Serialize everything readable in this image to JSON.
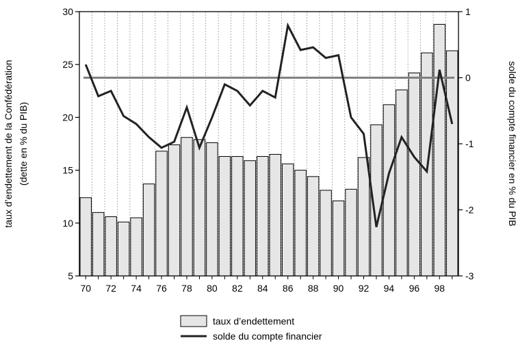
{
  "chart_data": {
    "type": "bar+line",
    "x_tick_labels": [
      "70",
      "72",
      "74",
      "76",
      "78",
      "80",
      "82",
      "84",
      "86",
      "88",
      "90",
      "92",
      "94",
      "96",
      "98"
    ],
    "left_axis": {
      "label_line1": "taux d’endettement de la Confédération",
      "label_line2": "(dette en % du PIB)",
      "range": [
        5,
        30
      ],
      "ticks": [
        5,
        10,
        15,
        20,
        25,
        30
      ],
      "tick_labels": [
        "5",
        "10",
        "15",
        "20",
        "25",
        "30"
      ]
    },
    "right_axis": {
      "label": "solde du compte financier en % du PIB",
      "range": [
        -3,
        1
      ],
      "ticks": [
        -3,
        -2,
        -1,
        0,
        1
      ],
      "tick_labels": [
        "-3",
        "-2",
        "-1",
        "0",
        "1"
      ]
    },
    "years": [
      1970,
      1971,
      1972,
      1973,
      1974,
      1975,
      1976,
      1977,
      1978,
      1979,
      1980,
      1981,
      1982,
      1983,
      1984,
      1985,
      1986,
      1987,
      1988,
      1989,
      1990,
      1991,
      1992,
      1993,
      1994,
      1995,
      1996,
      1997,
      1998,
      1999
    ],
    "series": [
      {
        "name": "taux d’endettement",
        "kind": "bar",
        "axis": "left",
        "color": "#e6e6e6",
        "values": [
          12.4,
          11.0,
          10.6,
          10.1,
          10.5,
          13.7,
          16.8,
          17.4,
          18.1,
          17.9,
          17.6,
          16.3,
          16.3,
          15.9,
          16.3,
          16.5,
          15.6,
          15.0,
          14.4,
          13.1,
          12.1,
          13.2,
          16.2,
          19.3,
          21.2,
          22.6,
          24.2,
          26.1,
          28.8,
          26.3
        ]
      },
      {
        "name": "solde du compte financier",
        "kind": "line",
        "axis": "right",
        "color": "#222222",
        "values": [
          0.2,
          -0.28,
          -0.2,
          -0.58,
          -0.7,
          -0.9,
          -1.06,
          -0.97,
          -0.45,
          -1.06,
          -0.6,
          -0.1,
          -0.2,
          -0.42,
          -0.2,
          -0.3,
          0.79,
          0.42,
          0.46,
          0.3,
          0.34,
          -0.6,
          -0.85,
          -2.26,
          -1.45,
          -0.9,
          -1.2,
          -1.42,
          0.12,
          -0.7
        ]
      }
    ],
    "reference_line": {
      "value": 0,
      "axis": "right",
      "color": "#808080"
    }
  }
}
